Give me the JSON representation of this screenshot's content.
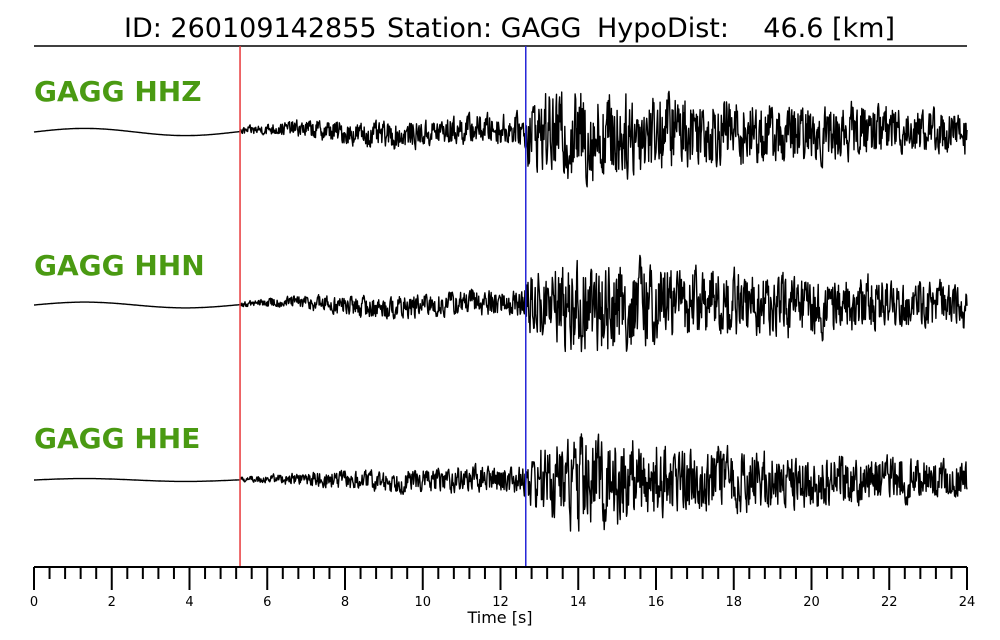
{
  "header": {
    "id_text": "ID: 260109142855",
    "station_text": "Station: GAGG",
    "hypodist_text": "HypoDist:    46.6 [km]"
  },
  "colors": {
    "label": "#4a9a12",
    "p_pick": "#e8383b",
    "s_pick": "#2424d8",
    "trace": "#000000"
  },
  "chart_data": {
    "type": "line",
    "title": "ID: 260109142855   Station: GAGG   HypoDist:    46.6 [km]",
    "xlabel": "Time [s]",
    "ylabel": "",
    "xlim": [
      0,
      24
    ],
    "x_ticks": [
      0,
      2,
      4,
      6,
      8,
      10,
      12,
      14,
      16,
      18,
      20,
      22,
      24
    ],
    "x_minor_tick_step": 0.4,
    "grid": false,
    "picks": [
      {
        "phase": "P",
        "time": 5.3,
        "color": "#e8383b"
      },
      {
        "phase": "S",
        "time": 12.65,
        "color": "#2424d8"
      }
    ],
    "series": [
      {
        "name": "GAGG HHZ",
        "envelope": {
          "t": [
            0,
            5.3,
            5.31,
            8,
            12.6,
            12.7,
            14,
            15,
            17,
            24
          ],
          "amplitude": [
            0.0,
            0.0,
            0.08,
            0.25,
            0.35,
            0.75,
            1.0,
            0.95,
            0.75,
            0.45
          ]
        },
        "long_period_drift": 0.05
      },
      {
        "name": "GAGG HHN",
        "envelope": {
          "t": [
            0,
            5.3,
            5.31,
            8,
            12.6,
            12.7,
            14,
            15,
            17,
            24
          ],
          "amplitude": [
            0.0,
            0.0,
            0.05,
            0.22,
            0.3,
            0.7,
            1.0,
            1.0,
            0.75,
            0.45
          ]
        },
        "long_period_drift": 0.04
      },
      {
        "name": "GAGG HHE",
        "envelope": {
          "t": [
            0,
            5.3,
            5.31,
            8,
            12.6,
            12.7,
            14,
            15,
            17,
            24
          ],
          "amplitude": [
            0.0,
            0.0,
            0.05,
            0.2,
            0.3,
            0.6,
            1.0,
            0.95,
            0.7,
            0.4
          ]
        },
        "long_period_drift": 0.02
      }
    ]
  }
}
